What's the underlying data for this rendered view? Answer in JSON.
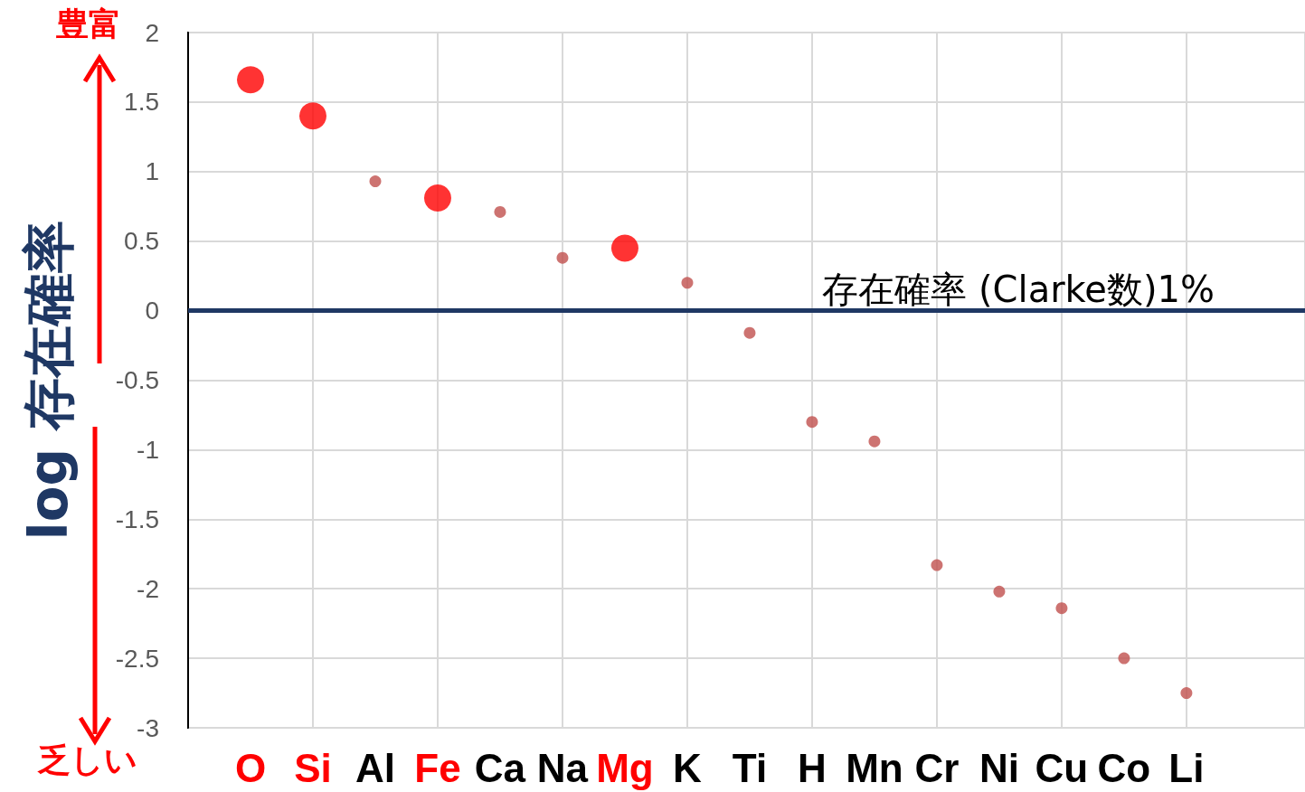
{
  "chart_data": {
    "type": "scatter",
    "ylabel": "log 存在確率",
    "categories": [
      "O",
      "Si",
      "Al",
      "Fe",
      "Ca",
      "Na",
      "Mg",
      "K",
      "Ti",
      "H",
      "Mn",
      "Cr",
      "Ni",
      "Cu",
      "Co",
      "Li"
    ],
    "series": [
      {
        "color": "#ff0000",
        "values": [
          1.66,
          1.4,
          null,
          0.81,
          null,
          null,
          0.45,
          null,
          null,
          null,
          null,
          null,
          null,
          null,
          null,
          null
        ]
      },
      {
        "color": "#c0504d",
        "values": [
          null,
          null,
          0.93,
          null,
          0.71,
          0.38,
          null,
          0.2,
          -0.16,
          -0.8,
          -0.94,
          -1.83,
          -2.02,
          -2.14,
          -2.5,
          -2.75
        ]
      }
    ],
    "ylim": [
      -3,
      2
    ],
    "yticks": [
      -3,
      -2.5,
      -2,
      -1.5,
      -1,
      -0.5,
      0,
      0.5,
      1,
      1.5,
      2
    ],
    "grid": true,
    "marker": "circle",
    "ref_lines": [
      {
        "axis": "y",
        "value": 0,
        "label": "存在確率 (Clarke数)1%",
        "color": "#1f3864"
      }
    ],
    "annotations": [
      "豊富",
      "乏しい"
    ]
  }
}
